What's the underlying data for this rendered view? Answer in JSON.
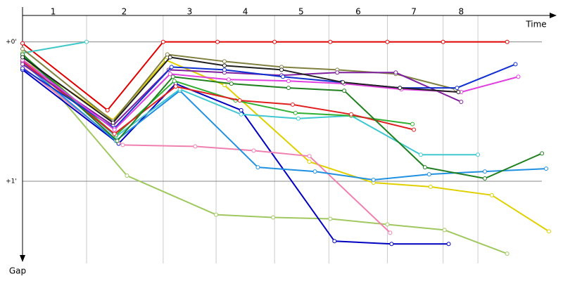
{
  "chart_data": {
    "type": "line",
    "x_label": "Time",
    "y_label": "Gap",
    "xlim": [
      0,
      3.78
    ],
    "ylim": [
      -0.2,
      1.59
    ],
    "y_inverted": true,
    "grid": true,
    "xticks": [
      {
        "value": 0.22,
        "label": "1"
      },
      {
        "value": 0.73,
        "label": "2"
      },
      {
        "value": 1.2,
        "label": "3"
      },
      {
        "value": 1.6,
        "label": "4"
      },
      {
        "value": 2.0,
        "label": "5"
      },
      {
        "value": 2.41,
        "label": "6"
      },
      {
        "value": 2.81,
        "label": "7"
      },
      {
        "value": 3.15,
        "label": "8"
      }
    ],
    "lap_boundaries": [
      0.46,
      1.01,
      1.39,
      1.81,
      2.2,
      2.62,
      3.02,
      3.27
    ],
    "yticks": [
      {
        "value": 0,
        "label": "+0'"
      },
      {
        "value": 1,
        "label": "+1'"
      }
    ],
    "series": [
      {
        "color": "#e00000",
        "x": [
          0,
          0.61,
          1.01,
          1.4,
          1.81,
          2.21,
          2.62,
          3.02,
          3.48
        ],
        "values": [
          0.01,
          0.49,
          0,
          0,
          0,
          0,
          0,
          0,
          0
        ]
      },
      {
        "color": "#40c8c8",
        "x": [
          0,
          0.46
        ],
        "values": [
          0.08,
          0
        ]
      },
      {
        "color": "#a0c860",
        "x": [
          0,
          0.75,
          1.39,
          1.8,
          2.21,
          2.62,
          3.03,
          3.48
        ],
        "values": [
          0.08,
          0.96,
          1.24,
          1.26,
          1.27,
          1.31,
          1.35,
          1.52
        ]
      },
      {
        "color": "#0000c0",
        "x": [
          0,
          0.69,
          1.1,
          1.57,
          2.24,
          2.65,
          3.06
        ],
        "values": [
          0.2,
          0.73,
          0.3,
          0.49,
          1.43,
          1.45,
          1.45
        ]
      },
      {
        "color": "#e0d000",
        "x": [
          0,
          0.65,
          1.03,
          1.45,
          2.06,
          2.52,
          2.93,
          3.37,
          3.78
        ],
        "values": [
          0.13,
          0.56,
          0.13,
          0.31,
          0.86,
          1.01,
          1.04,
          1.1,
          1.36
        ]
      },
      {
        "color": "#f080b0",
        "x": [
          0,
          0.72,
          1.24,
          1.66,
          2.06,
          2.64
        ],
        "values": [
          0.18,
          0.74,
          0.75,
          0.78,
          0.82,
          1.37
        ]
      },
      {
        "color": "#2090e0",
        "x": [
          0,
          0.67,
          1.13,
          1.69,
          2.1,
          2.52,
          2.92,
          3.32,
          3.76
        ],
        "values": [
          0.15,
          0.71,
          0.35,
          0.9,
          0.93,
          0.99,
          0.95,
          0.93,
          0.91
        ]
      },
      {
        "color": "#40c8d0",
        "x": [
          0,
          0.67,
          1.13,
          1.57,
          1.98,
          2.36,
          2.86,
          3.27
        ],
        "values": [
          0.1,
          0.68,
          0.34,
          0.52,
          0.55,
          0.53,
          0.81,
          0.81
        ]
      },
      {
        "color": "#30b030",
        "x": [
          0,
          0.67,
          1.09,
          1.53,
          1.96,
          2.36,
          2.8
        ],
        "values": [
          0.09,
          0.67,
          0.28,
          0.42,
          0.51,
          0.53,
          0.59
        ]
      },
      {
        "color": "#e02020",
        "x": [
          0,
          0.66,
          1.1,
          1.56,
          1.94,
          2.36,
          2.81
        ],
        "values": [
          0.14,
          0.66,
          0.32,
          0.42,
          0.45,
          0.52,
          0.63
        ]
      },
      {
        "color": "#208020",
        "x": [
          0,
          0.68,
          1.08,
          1.5,
          1.91,
          2.31,
          2.89,
          3.32,
          3.73
        ],
        "values": [
          0.09,
          0.71,
          0.25,
          0.3,
          0.33,
          0.35,
          0.9,
          0.98,
          0.8
        ]
      },
      {
        "color": "#808040",
        "x": [
          0,
          0.65,
          1.04,
          1.45,
          1.86,
          2.26,
          2.68,
          3.11
        ],
        "values": [
          0.05,
          0.57,
          0.09,
          0.14,
          0.18,
          0.2,
          0.23,
          0.34
        ]
      },
      {
        "color": "#8020a0",
        "x": [
          0,
          0.65,
          1.05,
          1.45,
          1.86,
          2.26,
          2.68,
          3.15
        ],
        "values": [
          0.16,
          0.6,
          0.2,
          0.22,
          0.24,
          0.22,
          0.22,
          0.43
        ]
      },
      {
        "color": "#1030d0",
        "x": [
          0,
          0.66,
          1.07,
          1.45,
          1.87,
          2.29,
          2.71,
          3.12,
          3.54
        ],
        "values": [
          0.19,
          0.62,
          0.18,
          0.2,
          0.25,
          0.29,
          0.33,
          0.33,
          0.16
        ]
      },
      {
        "color": "#e040e0",
        "x": [
          0,
          0.66,
          1.06,
          1.48,
          1.91,
          2.31,
          2.72,
          3.15,
          3.56
        ],
        "values": [
          0.13,
          0.63,
          0.23,
          0.27,
          0.28,
          0.3,
          0.34,
          0.36,
          0.25
        ]
      },
      {
        "color": "#202020",
        "x": [
          0,
          0.65,
          1.06,
          1.45,
          1.86,
          2.3,
          2.71,
          3.13
        ],
        "values": [
          0.11,
          0.58,
          0.11,
          0.17,
          0.2,
          0.29,
          0.33,
          0.36
        ]
      }
    ]
  }
}
